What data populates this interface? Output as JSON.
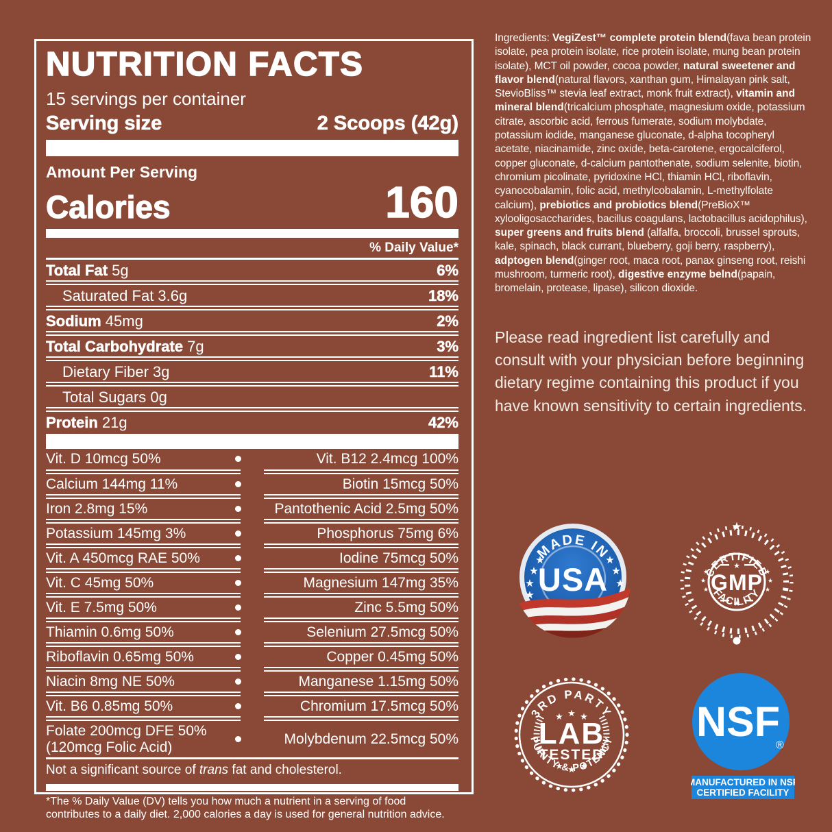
{
  "colors": {
    "background": "#8a4936",
    "panel_text": "#ffffff",
    "nsf_blue": "#1c86dc",
    "usa_blue": "#1e5fae",
    "ribbon_red": "#c0392b"
  },
  "panel": {
    "title": "NUTRITION FACTS",
    "servings_per_container": "15 servings per container",
    "serving_size_label": "Serving size",
    "serving_size_value": "2 Scoops (42g)",
    "amount_per_serving": "Amount Per Serving",
    "calories_label": "Calories",
    "calories_value": "160",
    "daily_value_header": "% Daily Value*",
    "nutrients": [
      {
        "label": "Total Fat",
        "amount": "5g",
        "dv": "6%",
        "bold": true,
        "indent": 0
      },
      {
        "label": "Saturated Fat",
        "amount": "3.6g",
        "dv": "18%",
        "bold": false,
        "indent": 1
      },
      {
        "label": "Sodium",
        "amount": "45mg",
        "dv": "2%",
        "bold": true,
        "indent": 0
      },
      {
        "label": "Total Carbohydrate",
        "amount": "7g",
        "dv": "3%",
        "bold": true,
        "indent": 0
      },
      {
        "label": "Dietary Fiber",
        "amount": "3g",
        "dv": "11%",
        "bold": false,
        "indent": 1
      },
      {
        "label": "Total Sugars",
        "amount": "0g",
        "dv": "",
        "bold": false,
        "indent": 1
      },
      {
        "label": "Protein",
        "amount": "21g",
        "dv": "42%",
        "bold": true,
        "indent": 0
      }
    ],
    "micronutrients": [
      {
        "left": "Vit. D 10mcg 50%",
        "right": "Vit. B12 2.4mcg 100%"
      },
      {
        "left": "Calcium 144mg 11%",
        "right": "Biotin 15mcg 50%"
      },
      {
        "left": "Iron 2.8mg 15%",
        "right": "Pantothenic Acid 2.5mg 50%"
      },
      {
        "left": "Potassium 145mg 3%",
        "right": "Phosphorus 75mg 6%"
      },
      {
        "left": "Vit. A 450mcg RAE 50%",
        "right": "Iodine 75mcg 50%"
      },
      {
        "left": "Vit. C 45mg 50%",
        "right": "Magnesium 147mg 35%"
      },
      {
        "left": "Vit. E 7.5mg 50%",
        "right": "Zinc 5.5mg 50%"
      },
      {
        "left": "Thiamin 0.6mg 50%",
        "right": "Selenium 27.5mcg 50%"
      },
      {
        "left": "Riboflavin 0.65mg 50%",
        "right": "Copper 0.45mg 50%"
      },
      {
        "left": "Niacin 8mg NE 50%",
        "right": "Manganese 1.15mg 50%"
      },
      {
        "left": "Vit. B6 0.85mg 50%",
        "right": "Chromium 17.5mcg 50%"
      },
      {
        "left": "Folate 200mcg DFE 50%\n(120mcg Folic Acid)",
        "right": "Molybdenum 22.5mcg 50%"
      }
    ],
    "note": {
      "prefix": "Not a significant source of ",
      "italic": "trans",
      "suffix": " fat and cholesterol."
    },
    "footnote": "*The % Daily Value (DV) tells you how much a nutrient in a serving of food contributes to a daily diet. 2,000 calories a day is used for general nutrition advice."
  },
  "ingredients": {
    "segments": [
      {
        "text": "Ingredients: ",
        "bold": false
      },
      {
        "text": "VegiZest™ complete protein blend",
        "bold": true
      },
      {
        "text": "(fava bean protein isolate, pea protein isolate, rice protein isolate, mung bean protein isolate), MCT oil powder, cocoa powder, ",
        "bold": false
      },
      {
        "text": "natural sweetener and flavor blend",
        "bold": true
      },
      {
        "text": "(natural flavors, xanthan gum, Himalayan pink salt, StevioBliss™ stevia leaf extract, monk fruit extract), ",
        "bold": false
      },
      {
        "text": "vitamin and mineral blend",
        "bold": true
      },
      {
        "text": "(tricalcium phosphate, magnesium oxide, potassium citrate, ascorbic acid, ferrous fumerate, sodium molybdate, potassium iodide, manganese gluconate, d-alpha tocopheryl acetate, niacinamide, zinc oxide, beta-carotene, ergocalciferol, copper gluconate, d-calcium pantothenate, sodium selenite, biotin, chromium picolinate, pyridoxine HCl, thiamin HCl, riboflavin, cyanocobalamin, folic acid, methylcobalamin, L-methylfolate calcium), ",
        "bold": false
      },
      {
        "text": "prebiotics and probiotics blend",
        "bold": true
      },
      {
        "text": "(PreBioX™ xylooligosaccharides, bacillus coagulans, lactobacillus acidophilus), ",
        "bold": false
      },
      {
        "text": "super greens and fruits blend",
        "bold": true
      },
      {
        "text": " (alfalfa, broccoli, brussel sprouts, kale, spinach, black currant, blueberry, goji berry, raspberry), ",
        "bold": false
      },
      {
        "text": "adptogen blend",
        "bold": true
      },
      {
        "text": "(ginger root, maca root, panax ginseng root, reishi mushroom, turmeric root), ",
        "bold": false
      },
      {
        "text": "digestive enzyme belnd",
        "bold": true
      },
      {
        "text": "(papain, bromelain, protease, lipase), silicon dioxide.",
        "bold": false
      }
    ]
  },
  "advisory": {
    "text": "Please read ingredient list carefully and consult with your physician before beginning dietary regime containing this product if you have known sensitivity to certain ingredients."
  },
  "badges": {
    "made_in_usa": {
      "arc_text": "MADE IN",
      "center_text": "USA"
    },
    "gmp": {
      "top_arc": "CERTIFIED",
      "center": "GMP",
      "bottom_arc": "FACILITY"
    },
    "lab_tested": {
      "top_arc": "3RD PARTY",
      "line1": "LAB",
      "line2": "TESTED",
      "bottom_arc": "PURITY & POTENCY"
    },
    "nsf": {
      "center": "NSF",
      "reg_mark": "®",
      "caption_line1": "MANUFACTURED IN NSF",
      "caption_line2": "CERTIFIED FACILITY"
    }
  }
}
